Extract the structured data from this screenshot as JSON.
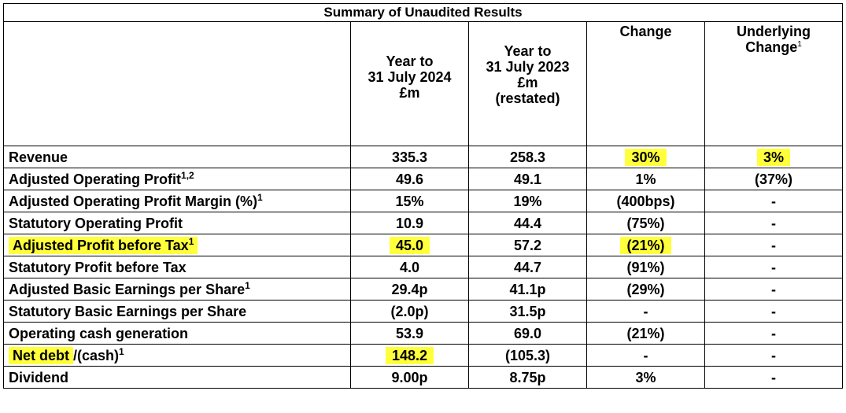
{
  "table": {
    "title": "Summary of Unaudited Results",
    "headers": {
      "col1": [
        "Year to",
        "31 July 2024",
        "£m"
      ],
      "col2": [
        "Year to",
        "31 July 2023",
        "£m",
        "(restated)"
      ],
      "col3": [
        "Change"
      ],
      "col4": [
        "Underlying",
        "Change"
      ],
      "col4_sup": "1"
    },
    "rows": [
      {
        "label": "Revenue",
        "sup": "",
        "v2024": "335.3",
        "v2023": "258.3",
        "change": "30%",
        "underlying": "3%",
        "hl_label": false,
        "hl_2024": false,
        "hl_change": true,
        "hl_underlying": true
      },
      {
        "label": "Adjusted Operating Profit",
        "sup": "1,2",
        "v2024": "49.6",
        "v2023": "49.1",
        "change": "1%",
        "underlying": "(37%)"
      },
      {
        "label": "Adjusted Operating Profit Margin (%)",
        "sup": "1",
        "v2024": "15%",
        "v2023": "19%",
        "change": "(400bps)",
        "underlying": "-"
      },
      {
        "label": "Statutory Operating Profit",
        "sup": "",
        "v2024": "10.9",
        "v2023": "44.4",
        "change": "(75%)",
        "underlying": "-"
      },
      {
        "label": "Adjusted Profit before Tax",
        "sup": "1",
        "v2024": "45.0",
        "v2023": "57.2",
        "change": "(21%)",
        "underlying": "-",
        "hl_label": true,
        "hl_2024": true,
        "hl_change": true
      },
      {
        "label": "Statutory Profit before Tax",
        "sup": "",
        "v2024": "4.0",
        "v2023": "44.7",
        "change": "(91%)",
        "underlying": "-"
      },
      {
        "label": "Adjusted Basic Earnings per Share",
        "sup": "1",
        "v2024": "29.4p",
        "v2023": "41.1p",
        "change": "(29%)",
        "underlying": "-"
      },
      {
        "label": "Statutory Basic Earnings per Share",
        "sup": "",
        "v2024": "(2.0p)",
        "v2023": "31.5p",
        "change": "-",
        "underlying": "-"
      },
      {
        "label": "Operating cash generation",
        "sup": "",
        "v2024": "53.9",
        "v2023": "69.0",
        "change": "(21%)",
        "underlying": "-"
      },
      {
        "label": "Net debt",
        "label_suffix": "/(cash)",
        "sup": "1",
        "v2024": "148.2",
        "v2023": "(105.3)",
        "change": "-",
        "underlying": "-",
        "hl_label": true,
        "hl_2024": true
      },
      {
        "label": "Dividend",
        "sup": "",
        "v2024": "9.00p",
        "v2023": "8.75p",
        "change": "3%",
        "underlying": "-"
      }
    ],
    "highlight_color": "#ffff3c"
  }
}
